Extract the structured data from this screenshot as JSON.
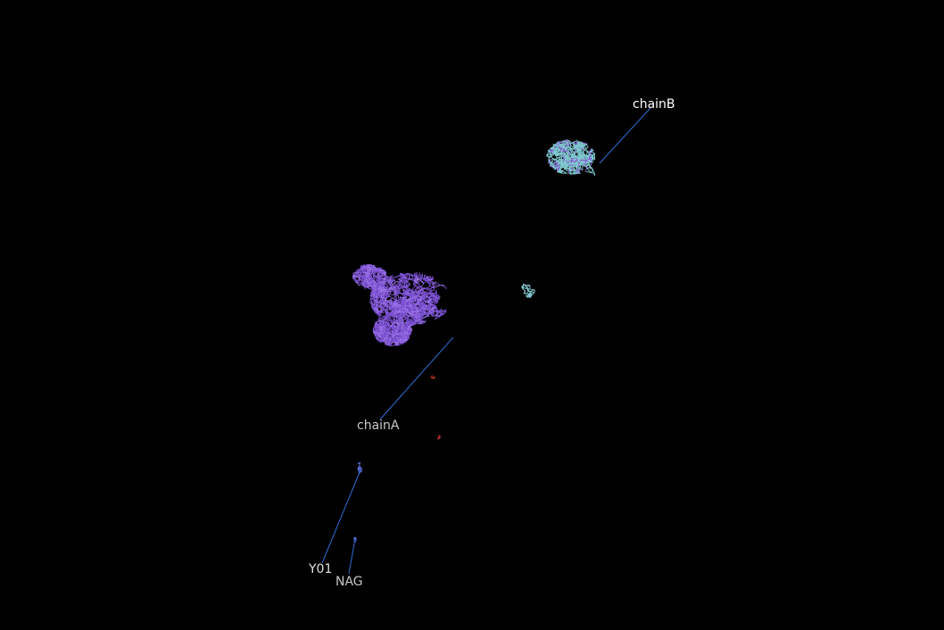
{
  "viewer": {
    "background": "#000000",
    "leader_line_color": "#2f6fd6",
    "labels": {
      "chainB": {
        "text": "chainB",
        "color": "#ffffff"
      },
      "chainA": {
        "text": "chainA",
        "color": "#c8c8c8"
      },
      "y01": {
        "text": "Y01",
        "color": "#e0e0e0"
      },
      "nag": {
        "text": "NAG",
        "color": "#c8c8c8"
      }
    },
    "colors": {
      "chainA": "#7a4fd0",
      "chainA_light": "#9a72e6",
      "chainB": "#7fc8cf",
      "chainB_purple": "#8a5bd6",
      "ligand_red": "#c0302a",
      "ligand_blue": "#5a6ee0"
    }
  }
}
